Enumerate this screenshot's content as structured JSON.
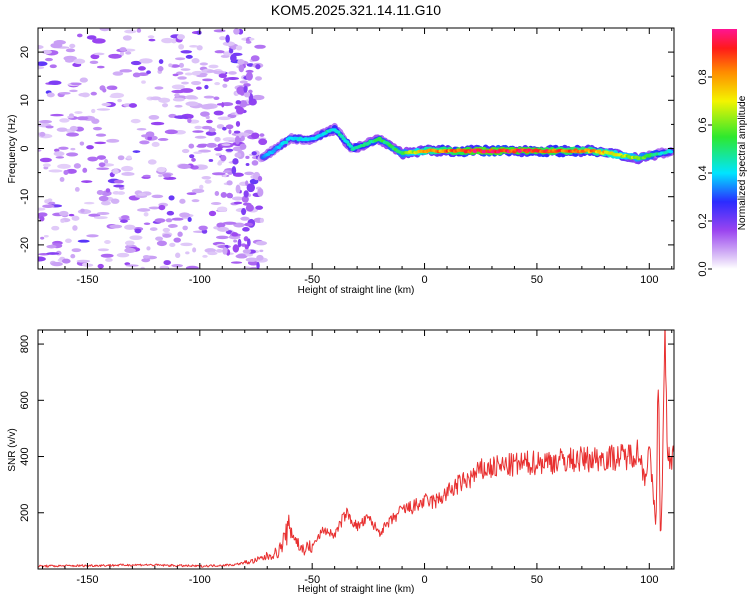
{
  "title": "KOM5.2025.321.14.11.G10",
  "colors": {
    "line": "#e83030",
    "axis": "#000000"
  },
  "chart_data": [
    {
      "type": "heatmap",
      "title": "KOM5.2025.321.14.11.G10",
      "xlabel": "Height of straight line (km)",
      "ylabel": "Frequency (Hz)",
      "xlim": [
        -172,
        111
      ],
      "ylim": [
        -25,
        25
      ],
      "xticks": [
        -150,
        -100,
        -50,
        0,
        50,
        100
      ],
      "yticks": [
        -20,
        -10,
        0,
        10,
        20
      ],
      "colorbar": {
        "label": "Normalized spectral amplitude",
        "range": [
          0.0,
          1.0
        ],
        "ticks": [
          0.0,
          0.2,
          0.4,
          0.6,
          0.8
        ]
      },
      "ridge": {
        "description": "dominant spectral ridge",
        "x": [
          -72,
          -60,
          -50,
          -40,
          -32,
          -20,
          -10,
          0,
          25,
          50,
          75,
          95,
          110
        ],
        "frequency": [
          -2,
          2,
          2,
          4,
          0,
          2,
          -1,
          -0.5,
          -0.5,
          -0.5,
          -0.5,
          -2,
          -0.5
        ],
        "amplitude": [
          0.35,
          0.4,
          0.4,
          0.45,
          0.45,
          0.5,
          0.55,
          0.75,
          0.95,
          0.9,
          0.8,
          0.6,
          0.4
        ]
      },
      "noise_region": {
        "x_range": [
          -172,
          -72
        ],
        "amplitude": [
          0.0,
          0.2
        ]
      }
    },
    {
      "type": "line",
      "xlabel": "Height of straight line (km)",
      "ylabel": "SNR (v/v)",
      "xlim": [
        -172,
        111
      ],
      "ylim": [
        0,
        850
      ],
      "xticks": [
        -150,
        -100,
        -50,
        0,
        50,
        100
      ],
      "yticks": [
        200,
        400,
        600,
        800
      ],
      "series": [
        {
          "name": "SNR",
          "x": [
            -172,
            -150,
            -125,
            -100,
            -85,
            -75,
            -65,
            -60,
            -55,
            -50,
            -45,
            -40,
            -35,
            -30,
            -25,
            -20,
            -15,
            -10,
            -5,
            0,
            5,
            10,
            15,
            20,
            25,
            30,
            40,
            50,
            60,
            70,
            80,
            90,
            95,
            98,
            100,
            103,
            104,
            105,
            106,
            107,
            108,
            110,
            111
          ],
          "y": [
            10,
            12,
            15,
            10,
            15,
            30,
            60,
            150,
            70,
            80,
            140,
            120,
            200,
            150,
            180,
            130,
            170,
            210,
            220,
            240,
            240,
            270,
            300,
            320,
            350,
            360,
            370,
            380,
            385,
            390,
            395,
            400,
            420,
            330,
            420,
            150,
            720,
            60,
            400,
            850,
            390,
            395,
            400
          ]
        }
      ]
    }
  ]
}
